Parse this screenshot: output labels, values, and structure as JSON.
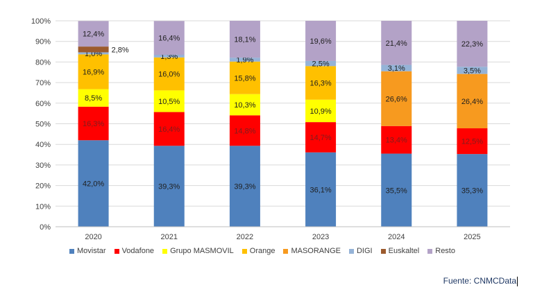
{
  "chart_data": {
    "type": "bar",
    "stacked": true,
    "categories": [
      "2020",
      "2021",
      "2022",
      "2023",
      "2024",
      "2025"
    ],
    "ylim": [
      0,
      100
    ],
    "yticks": [
      "0%",
      "10%",
      "20%",
      "30%",
      "40%",
      "50%",
      "60%",
      "70%",
      "80%",
      "90%",
      "100%"
    ],
    "grid": true,
    "legend_position": "bottom",
    "series": [
      {
        "name": "Movistar",
        "color": "#4f81bd",
        "text_color": "#1f1f1f",
        "values": [
          42.0,
          39.3,
          39.3,
          36.1,
          35.5,
          35.3
        ],
        "labels": [
          "42,0%",
          "39,3%",
          "39,3%",
          "36,1%",
          "35,5%",
          "35,3%"
        ]
      },
      {
        "name": "Vodafone",
        "color": "#ff0000",
        "text_color": "#7f1d1d",
        "values": [
          16.3,
          16.4,
          14.8,
          14.7,
          13.4,
          12.5
        ],
        "labels": [
          "16,3%",
          "16,4%",
          "14,8%",
          "14,7%",
          "13,4%",
          "12,5%"
        ]
      },
      {
        "name": "Grupo MASMOVIL",
        "color": "#ffff00",
        "text_color": "#1f1f1f",
        "values": [
          8.5,
          10.5,
          10.3,
          10.9,
          null,
          null
        ],
        "labels": [
          "8,5%",
          "10,5%",
          "10,3%",
          "10,9%",
          null,
          null
        ]
      },
      {
        "name": "Orange",
        "color": "#ffc000",
        "text_color": "#1f1f1f",
        "values": [
          16.9,
          16.0,
          15.8,
          16.3,
          null,
          null
        ],
        "labels": [
          "16,9%",
          "16,0%",
          "15,8%",
          "16,3%",
          null,
          null
        ]
      },
      {
        "name": "MASORANGE",
        "color": "#f79a1f",
        "text_color": "#1f1f1f",
        "values": [
          null,
          null,
          null,
          null,
          26.6,
          26.4
        ],
        "labels": [
          null,
          null,
          null,
          null,
          "26,6%",
          "26,4%"
        ]
      },
      {
        "name": "DIGI",
        "color": "#95b3d7",
        "text_color": "#1f1f1f",
        "values": [
          1.0,
          1.3,
          1.9,
          2.5,
          3.1,
          3.5
        ],
        "labels": [
          "1,0%",
          "1,3%",
          "1,9%",
          "2,5%",
          "3,1%",
          "3,5%"
        ]
      },
      {
        "name": "Euskaltel",
        "color": "#9c5b2e",
        "text_color": "#1f1f1f",
        "values": [
          2.8,
          null,
          null,
          null,
          null,
          null
        ],
        "labels": [
          "2,8%",
          null,
          null,
          null,
          null,
          null
        ],
        "label_outside": [
          true,
          false,
          false,
          false,
          false,
          false
        ]
      },
      {
        "name": "Resto",
        "color": "#b3a2c7",
        "text_color": "#1f1f1f",
        "values": [
          12.4,
          16.4,
          18.1,
          19.6,
          21.4,
          22.3
        ],
        "labels": [
          "12,4%",
          "16,4%",
          "18,1%",
          "19,6%",
          "21,4%",
          "22,3%"
        ]
      }
    ]
  },
  "source": {
    "text": "Fuente: CNMCData"
  }
}
